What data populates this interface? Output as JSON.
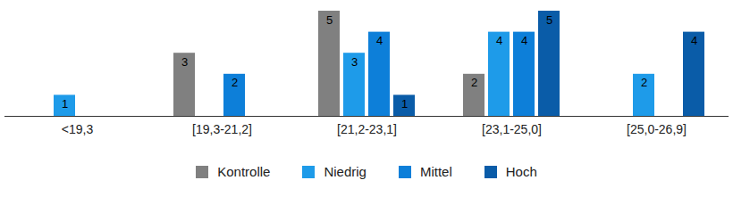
{
  "chart_data": {
    "type": "bar",
    "categories": [
      "<19,3",
      "[19,3-21,2]",
      "[21,2-23,1]",
      "[23,1-25,0]",
      "[25,0-26,9]"
    ],
    "series": [
      {
        "name": "Kontrolle",
        "color": "#808080",
        "values": [
          null,
          3,
          5,
          2,
          null
        ]
      },
      {
        "name": "Niedrig",
        "color": "#1e9be9",
        "values": [
          1,
          null,
          3,
          4,
          2
        ]
      },
      {
        "name": "Mittel",
        "color": "#0d7fd9",
        "values": [
          null,
          2,
          4,
          4,
          null
        ]
      },
      {
        "name": "Hoch",
        "color": "#0a5ca8",
        "values": [
          null,
          null,
          1,
          5,
          4
        ]
      }
    ],
    "ylim": [
      0,
      5
    ],
    "tick_labels": "x",
    "data_labels": true,
    "legend": "bottom",
    "grid": false
  }
}
